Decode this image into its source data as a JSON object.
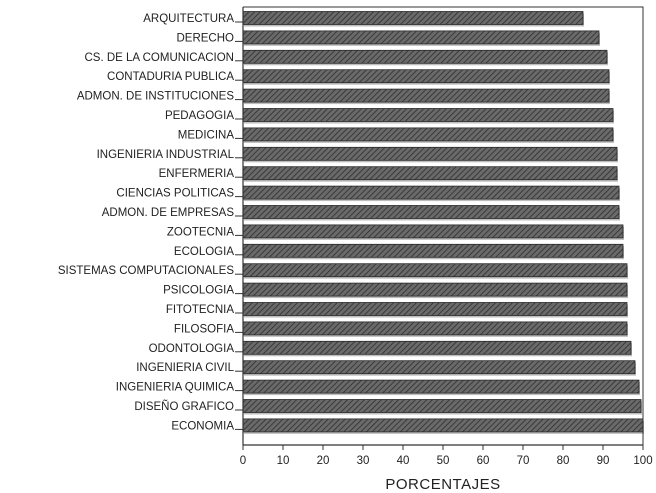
{
  "chart_data": {
    "type": "bar",
    "orientation": "horizontal",
    "categories": [
      "ARQUITECTURA",
      "DERECHO",
      "CS. DE LA COMUNICACION",
      "CONTADURIA PUBLICA",
      "ADMON. DE INSTITUCIONES",
      "PEDAGOGIA",
      "MEDICINA",
      "INGENIERIA INDUSTRIAL",
      "ENFERMERIA",
      "CIENCIAS POLITICAS",
      "ADMON. DE EMPRESAS",
      "ZOOTECNIA",
      "ECOLOGIA",
      "SISTEMAS COMPUTACIONALES",
      "PSICOLOGIA",
      "FITOTECNIA",
      "FILOSOFIA",
      "ODONTOLOGIA",
      "INGENIERIA CIVIL",
      "INGENIERIA QUIMICA",
      "DISEÑO GRAFICO",
      "ECONOMIA"
    ],
    "values": [
      85,
      89,
      91,
      91.5,
      91.5,
      92.5,
      92.5,
      93.5,
      93.5,
      94,
      94,
      95,
      95,
      96,
      96,
      96,
      96,
      97,
      98,
      99,
      99.5,
      100
    ],
    "xlabel": "PORCENTAJES",
    "ylabel": "",
    "title": "",
    "xlim": [
      0,
      100
    ],
    "xticks": [
      "0",
      "10",
      "20",
      "30",
      "40",
      "50",
      "60",
      "70",
      "80",
      "90",
      "100"
    ],
    "grid": false,
    "legend": "none",
    "bar_color": "#5a5a5a",
    "axis_color": "#333333"
  }
}
